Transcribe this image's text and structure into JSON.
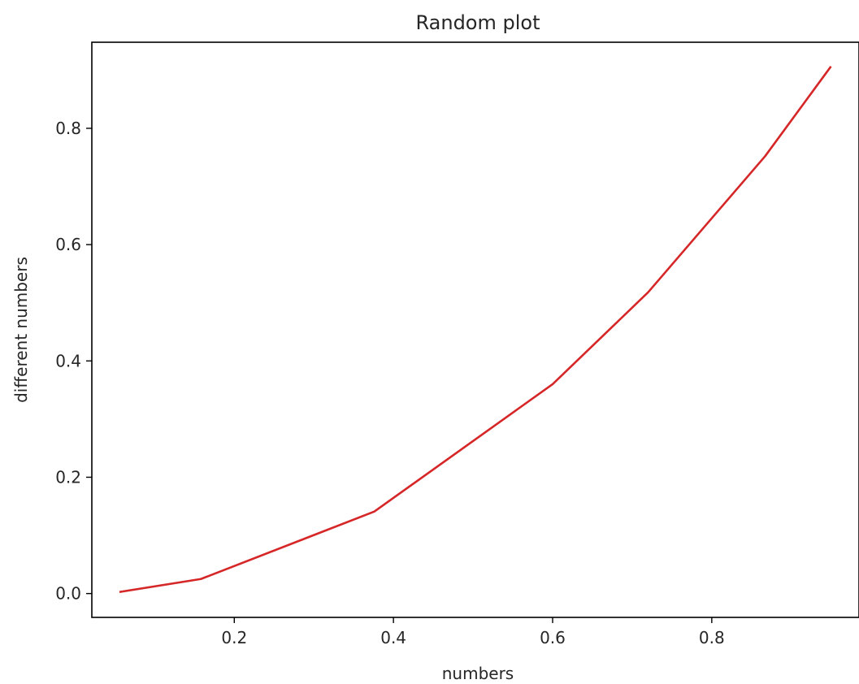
{
  "chart_data": {
    "type": "line",
    "title": "Random plot",
    "xlabel": "numbers",
    "ylabel": "different numbers",
    "xlim": [
      0.021,
      0.985
    ],
    "ylim": [
      -0.041,
      0.948
    ],
    "xticks": [
      0.2,
      0.4,
      0.6,
      0.8
    ],
    "xtick_labels": [
      "0.2",
      "0.4",
      "0.6",
      "0.8"
    ],
    "yticks": [
      0.0,
      0.2,
      0.4,
      0.6,
      0.8
    ],
    "ytick_labels": [
      "0.0",
      "0.2",
      "0.4",
      "0.6",
      "0.8"
    ],
    "grid": false,
    "series": [
      {
        "color": "#d62728",
        "x": [
          0.057,
          0.158,
          0.376,
          0.6,
          0.72,
          0.867,
          0.949
        ],
        "y": [
          0.003,
          0.025,
          0.141,
          0.36,
          0.518,
          0.752,
          0.905
        ]
      }
    ]
  }
}
